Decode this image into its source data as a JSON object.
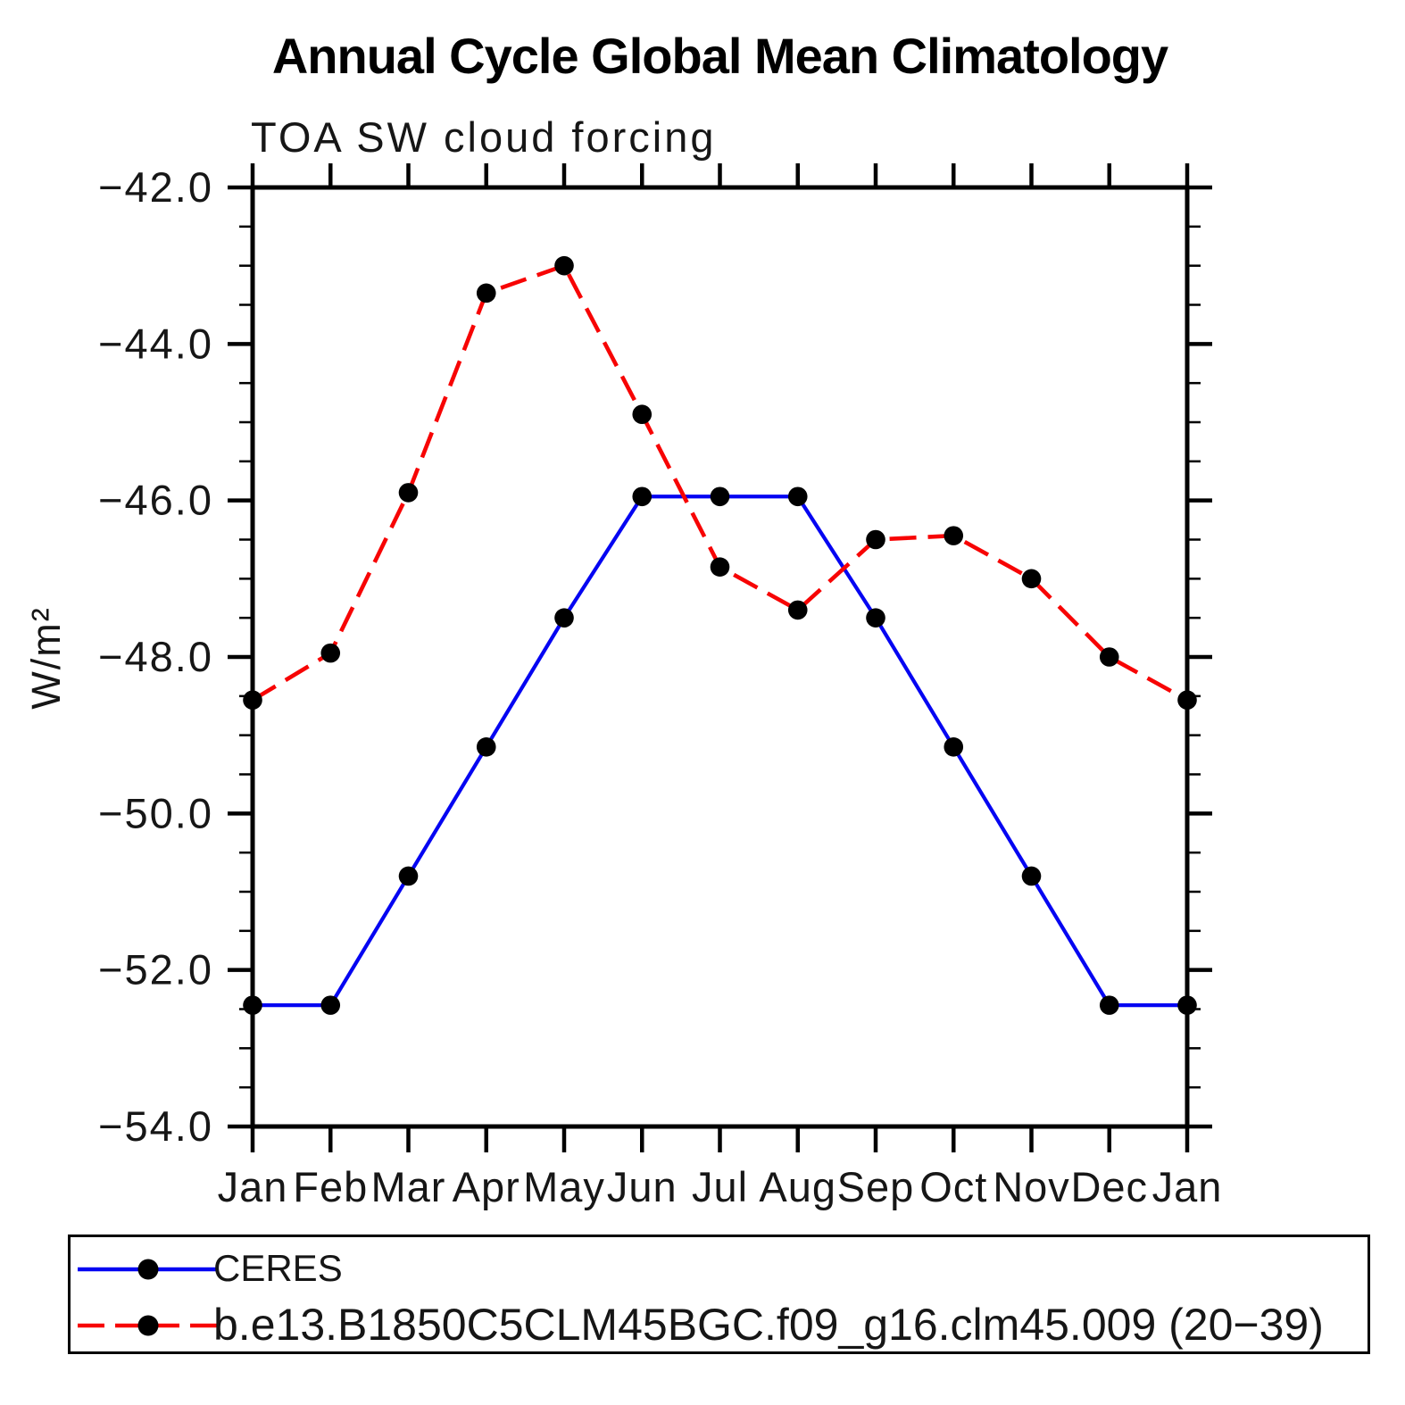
{
  "title": "Annual Cycle Global Mean Climatology",
  "subtitle": "TOA SW cloud forcing",
  "chart_data": {
    "type": "line",
    "title": "Annual Cycle Global Mean Climatology",
    "subtitle": "TOA SW cloud forcing",
    "xlabel": "",
    "ylabel": "W/m²",
    "categories": [
      "Jan",
      "Feb",
      "Mar",
      "Apr",
      "May",
      "Jun",
      "Jul",
      "Aug",
      "Sep",
      "Oct",
      "Nov",
      "Dec",
      "Jan"
    ],
    "ylim": [
      -54.0,
      -42.0
    ],
    "ytick_step": 2.0,
    "yminor_step": 0.5,
    "ytick_labels": [
      "−42.0",
      "−44.0",
      "−46.0",
      "−48.0",
      "−50.0",
      "−52.0",
      "−54.0"
    ],
    "grid": false,
    "legend_position": "bottom-box",
    "axis_color": "#000000",
    "marker": "filled-circle",
    "marker_color": "#000000",
    "series": [
      {
        "name": "CERES",
        "color": "#0505f2",
        "style": "solid",
        "values": [
          -52.45,
          -52.45,
          -50.8,
          -49.15,
          -47.5,
          -45.95,
          -45.95,
          -45.95,
          -47.5,
          -49.15,
          -50.8,
          -52.45,
          -52.45
        ]
      },
      {
        "name": "b.e13.B1850C5CLM45BGC.f09_g16.clm45.009 (20−39)",
        "color": "#f70404",
        "style": "dashed",
        "values": [
          -48.55,
          -47.95,
          -45.9,
          -43.35,
          -43.0,
          -44.9,
          -46.85,
          -47.4,
          -46.5,
          -46.45,
          -47.0,
          -48.0,
          -48.55
        ]
      }
    ]
  }
}
